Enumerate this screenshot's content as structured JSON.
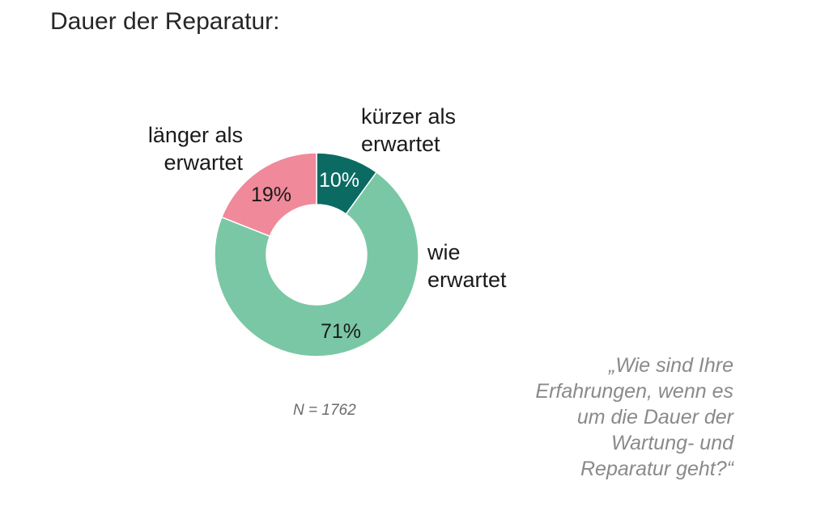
{
  "title": "Dauer der Reparatur:",
  "chart_data": {
    "type": "pie",
    "donut": true,
    "slices": [
      {
        "label_lines": [
          "kürzer als",
          "erwartet"
        ],
        "value": 10,
        "value_label": "10%",
        "color": "#0b6b63"
      },
      {
        "label_lines": [
          "wie",
          "erwartet"
        ],
        "value": 71,
        "value_label": "71%",
        "color": "#7ac7a5"
      },
      {
        "label_lines": [
          "länger als",
          "erwartet"
        ],
        "value": 19,
        "value_label": "19%",
        "color": "#f0899a"
      }
    ]
  },
  "note": "N = 1762",
  "question_lines": [
    "„Wie sind Ihre",
    "Erfahrungen, wenn es",
    "um die Dauer der",
    "Wartung- und",
    "Reparatur geht?“"
  ]
}
